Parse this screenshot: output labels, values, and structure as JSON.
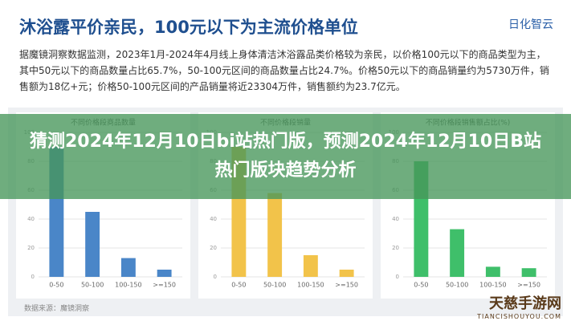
{
  "header": {
    "title": "沐浴露平价亲民，100元以下为主流价格单位",
    "logo": "日化智云",
    "description": "据魔镜洞察数据监测，2023年1月-2024年4月线上身体清洁沐浴露品类价格较为亲民，以价格100元以下的商品类型为主，其中50元以下的商品数量占比65.7%，50-100元区间的商品数量占比24.7%。价格50元以下的商品销量约为5730万件，销售额为18亿+元；价格50-100元区间的产品销量将近23304万件，销售额约为23.7亿元。"
  },
  "overlay": {
    "title": "猜测2024年12月10日bi站热门版，预测2024年12月10日B站热门版块趋势分析"
  },
  "footer": {
    "source": "数据来源：魔镜洞察"
  },
  "watermark": {
    "name": "天慈手游网",
    "url": "TIANCISHOUYOU.COM"
  },
  "chart_data": [
    {
      "type": "bar",
      "title": "不同价格段商品数量",
      "categories": [
        "0-50",
        "50-100",
        "100-150",
        ">=150"
      ],
      "values": [
        90,
        45,
        13,
        5
      ],
      "color": "#4a86c8",
      "ylim": [
        0,
        100
      ],
      "yticks": [
        0,
        20,
        40,
        60,
        80,
        100
      ],
      "grid": true
    },
    {
      "type": "bar",
      "title": "不同价格段销量",
      "categories": [
        "0-50",
        "50-100",
        "100-150",
        ">=150"
      ],
      "values": [
        90,
        58,
        15,
        5
      ],
      "color": "#f2c34a",
      "ylim": [
        0,
        100
      ],
      "yticks": [
        0,
        20,
        40,
        60,
        80,
        100
      ],
      "grid": true
    },
    {
      "type": "bar",
      "title": "不同价格段销售额占比(%)",
      "categories": [
        "0-50",
        "50-100",
        "100-150",
        ">=150"
      ],
      "values": [
        80,
        33,
        7,
        6
      ],
      "color": "#3fbf6a",
      "ylim": [
        0,
        100
      ],
      "yticks": [
        0,
        20,
        40,
        60,
        80,
        100
      ],
      "grid": true
    }
  ]
}
